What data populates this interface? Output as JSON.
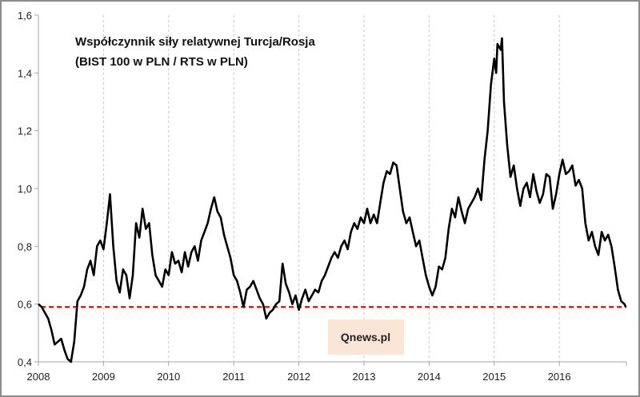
{
  "chart_data": {
    "type": "line",
    "title": [
      "Współczynnik siły relatywnej Turcja/Rosja",
      "(BIST 100 w PLN / RTS w PLN)"
    ],
    "xlabel": "",
    "ylabel": "",
    "x_ticks": [
      "2008",
      "2009",
      "2010",
      "2011",
      "2012",
      "2013",
      "2014",
      "2015",
      "2016"
    ],
    "y_ticks": [
      "0,4",
      "0,6",
      "0,8",
      "1,0",
      "1,2",
      "1,4",
      "1,6"
    ],
    "xlim": [
      2008,
      2017.03
    ],
    "ylim": [
      0.4,
      1.6
    ],
    "grid": "vertical dashed",
    "reference_line": {
      "value": 0.59,
      "color": "#ff0000",
      "style": "dashed"
    },
    "watermark": "Qnews.pl",
    "series": [
      {
        "name": "Turcja/Rosja",
        "color": "#000000",
        "x": [
          2008.0,
          2008.05,
          2008.1,
          2008.15,
          2008.2,
          2008.25,
          2008.3,
          2008.35,
          2008.4,
          2008.45,
          2008.5,
          2008.55,
          2008.6,
          2008.65,
          2008.7,
          2008.75,
          2008.8,
          2008.85,
          2008.9,
          2008.95,
          2009.0,
          2009.05,
          2009.1,
          2009.15,
          2009.2,
          2009.25,
          2009.3,
          2009.35,
          2009.4,
          2009.45,
          2009.5,
          2009.55,
          2009.6,
          2009.65,
          2009.7,
          2009.75,
          2009.8,
          2009.85,
          2009.9,
          2009.95,
          2010.0,
          2010.05,
          2010.1,
          2010.15,
          2010.2,
          2010.25,
          2010.3,
          2010.35,
          2010.4,
          2010.45,
          2010.5,
          2010.55,
          2010.6,
          2010.65,
          2010.7,
          2010.75,
          2010.8,
          2010.85,
          2010.9,
          2010.95,
          2011.0,
          2011.05,
          2011.1,
          2011.15,
          2011.2,
          2011.25,
          2011.3,
          2011.35,
          2011.4,
          2011.45,
          2011.5,
          2011.55,
          2011.6,
          2011.65,
          2011.7,
          2011.75,
          2011.8,
          2011.85,
          2011.9,
          2011.95,
          2012.0,
          2012.05,
          2012.1,
          2012.15,
          2012.2,
          2012.25,
          2012.3,
          2012.35,
          2012.4,
          2012.45,
          2012.5,
          2012.55,
          2012.6,
          2012.65,
          2012.7,
          2012.75,
          2012.8,
          2012.85,
          2012.9,
          2012.95,
          2013.0,
          2013.05,
          2013.1,
          2013.15,
          2013.2,
          2013.25,
          2013.3,
          2013.35,
          2013.4,
          2013.45,
          2013.5,
          2013.55,
          2013.6,
          2013.65,
          2013.7,
          2013.75,
          2013.8,
          2013.85,
          2013.9,
          2013.95,
          2014.0,
          2014.05,
          2014.1,
          2014.15,
          2014.2,
          2014.25,
          2014.3,
          2014.35,
          2014.4,
          2014.45,
          2014.5,
          2014.55,
          2014.6,
          2014.7,
          2014.75,
          2014.8,
          2014.85,
          2014.9,
          2014.95,
          2015.0,
          2015.03,
          2015.05,
          2015.1,
          2015.12,
          2015.15,
          2015.2,
          2015.25,
          2015.3,
          2015.35,
          2015.4,
          2015.45,
          2015.5,
          2015.55,
          2015.6,
          2015.65,
          2015.7,
          2015.75,
          2015.8,
          2015.85,
          2015.9,
          2015.95,
          2016.0,
          2016.05,
          2016.1,
          2016.15,
          2016.2,
          2016.25,
          2016.3,
          2016.35,
          2016.4,
          2016.45,
          2016.5,
          2016.55,
          2016.6,
          2016.65,
          2016.7,
          2016.75,
          2016.8,
          2016.85,
          2016.9,
          2016.95,
          2017.0,
          2017.02
        ],
        "values": [
          0.6,
          0.59,
          0.57,
          0.55,
          0.51,
          0.46,
          0.47,
          0.48,
          0.44,
          0.41,
          0.4,
          0.47,
          0.61,
          0.63,
          0.66,
          0.72,
          0.75,
          0.7,
          0.8,
          0.82,
          0.79,
          0.88,
          0.98,
          0.8,
          0.68,
          0.64,
          0.72,
          0.7,
          0.62,
          0.7,
          0.88,
          0.83,
          0.93,
          0.86,
          0.88,
          0.77,
          0.7,
          0.68,
          0.66,
          0.72,
          0.7,
          0.78,
          0.74,
          0.75,
          0.71,
          0.78,
          0.73,
          0.78,
          0.8,
          0.75,
          0.82,
          0.85,
          0.88,
          0.93,
          0.97,
          0.92,
          0.9,
          0.84,
          0.8,
          0.76,
          0.7,
          0.68,
          0.64,
          0.59,
          0.65,
          0.66,
          0.68,
          0.65,
          0.62,
          0.6,
          0.55,
          0.57,
          0.58,
          0.6,
          0.61,
          0.74,
          0.67,
          0.64,
          0.6,
          0.63,
          0.58,
          0.62,
          0.65,
          0.61,
          0.63,
          0.65,
          0.64,
          0.68,
          0.7,
          0.73,
          0.76,
          0.78,
          0.76,
          0.8,
          0.82,
          0.79,
          0.85,
          0.88,
          0.86,
          0.9,
          0.88,
          0.93,
          0.88,
          0.91,
          0.88,
          0.95,
          1.02,
          1.06,
          1.05,
          1.09,
          1.08,
          1.0,
          0.92,
          0.88,
          0.9,
          0.85,
          0.8,
          0.82,
          0.76,
          0.7,
          0.66,
          0.63,
          0.66,
          0.73,
          0.72,
          0.76,
          0.86,
          0.93,
          0.9,
          0.97,
          0.92,
          0.88,
          0.93,
          0.97,
          1.0,
          0.96,
          1.1,
          1.2,
          1.36,
          1.45,
          1.4,
          1.5,
          1.48,
          1.52,
          1.3,
          1.15,
          1.04,
          1.08,
          1.0,
          0.94,
          1.0,
          1.02,
          0.97,
          1.05,
          0.99,
          0.95,
          0.98,
          1.05,
          1.04,
          0.93,
          0.98,
          1.05,
          1.1,
          1.05,
          1.06,
          1.08,
          1.01,
          1.03,
          1.0,
          0.88,
          0.82,
          0.85,
          0.8,
          0.77,
          0.85,
          0.82,
          0.84,
          0.8,
          0.73,
          0.65,
          0.61,
          0.6,
          0.59
        ]
      }
    ]
  }
}
